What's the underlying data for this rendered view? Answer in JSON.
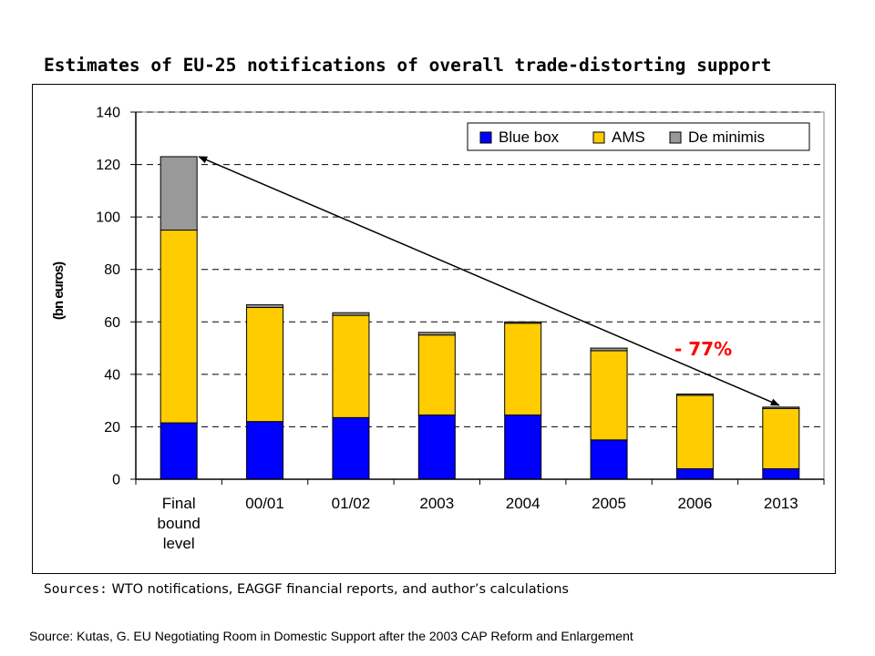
{
  "header": {
    "title": "Estimates of EU-25 notifications of overall trade-distorting support"
  },
  "chart_data": {
    "type": "bar",
    "stacked": true,
    "categories": [
      [
        "Final",
        "bound",
        "level"
      ],
      "00/01",
      "01/02",
      "2003",
      "2004",
      "2005",
      "2006",
      "2013"
    ],
    "series": [
      {
        "name": "Blue box",
        "color": "#0000ff",
        "values": [
          21.5,
          22,
          23.5,
          24.5,
          24.5,
          15,
          4,
          4
        ]
      },
      {
        "name": "AMS",
        "color": "#ffcc00",
        "values": [
          73.5,
          43.5,
          39,
          30.5,
          35,
          34,
          28,
          23
        ]
      },
      {
        "name": "De minimis",
        "color": "#999999",
        "values": [
          28,
          1,
          1,
          1,
          0.5,
          1,
          0.5,
          0.5
        ]
      }
    ],
    "ylabel": "(bn euros)",
    "xlabel": "",
    "ylim": [
      0,
      140
    ],
    "yticks": [
      0,
      20,
      40,
      60,
      80,
      100,
      120,
      140
    ],
    "grid": true,
    "legend_position": "top-right",
    "annotation": {
      "text": "- 77%",
      "color": "#ff0000",
      "arrow_from_category": "Final bound level",
      "arrow_to_category": "2013"
    }
  },
  "sources": {
    "label": "Sources:",
    "text": "WTO notifications, EAGGF financial reports, and author’s calculations"
  },
  "footer": {
    "source": "Source:  Kutas, G. EU Negotiating Room in Domestic Support after the 2003 CAP Reform and Enlargement"
  }
}
